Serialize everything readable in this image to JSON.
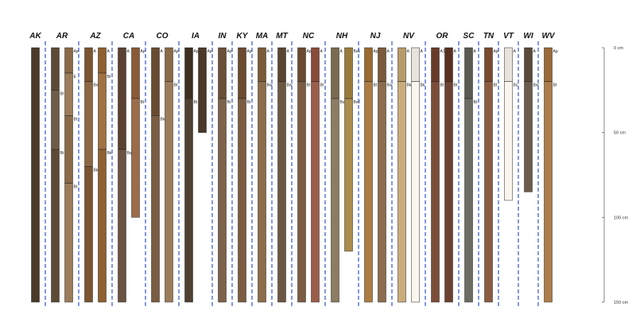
{
  "chart_data": {
    "type": "soil-profile-sketch",
    "depth_axis": {
      "unit": "cm",
      "ticks": [
        {
          "value": 0,
          "label": "0 cm"
        },
        {
          "value": 50,
          "label": "50 cm"
        },
        {
          "value": 100,
          "label": "100 cm"
        },
        {
          "value": 150,
          "label": "150 cm"
        }
      ],
      "range": [
        0,
        150
      ]
    },
    "divider_color": "#3355cc",
    "groups": [
      {
        "name": "AK",
        "profiles": [
          {
            "color": "#4a3a2a",
            "depth": 150,
            "horizons": [
              {
                "top": 0,
                "bottom": 150,
                "label": ""
              }
            ]
          }
        ]
      },
      {
        "name": "AR",
        "profiles": [
          {
            "color": "#5d4a36",
            "depth": 150,
            "horizons": [
              {
                "top": 0,
                "bottom": 25,
                "label": ""
              },
              {
                "top": 25,
                "bottom": 60,
                "label": "Bt"
              },
              {
                "top": 60,
                "bottom": 150,
                "label": "Bt"
              }
            ]
          },
          {
            "color": "#8a6a48",
            "depth": 155,
            "horizons": [
              {
                "top": 0,
                "bottom": 15,
                "label": "Ap"
              },
              {
                "top": 15,
                "bottom": 40,
                "label": "E"
              },
              {
                "top": 40,
                "bottom": 80,
                "label": "Bt"
              },
              {
                "top": 80,
                "bottom": 155,
                "label": "Bt"
              }
            ]
          }
        ]
      },
      {
        "name": "AZ",
        "profiles": [
          {
            "color": "#7a5530",
            "depth": 155,
            "horizons": [
              {
                "top": 0,
                "bottom": 20,
                "label": "A"
              },
              {
                "top": 20,
                "bottom": 70,
                "label": "Bw"
              },
              {
                "top": 70,
                "bottom": 155,
                "label": "Bk"
              }
            ]
          },
          {
            "color": "#8f5f30",
            "depth": 155,
            "horizons": [
              {
                "top": 0,
                "bottom": 15,
                "label": "A"
              },
              {
                "top": 15,
                "bottom": 60,
                "label": "Bt"
              },
              {
                "top": 60,
                "bottom": 155,
                "label": "Bk"
              }
            ]
          }
        ]
      },
      {
        "name": "CA",
        "profiles": [
          {
            "color": "#5a4030",
            "depth": 150,
            "horizons": [
              {
                "top": 0,
                "bottom": 60,
                "label": "A"
              },
              {
                "top": 60,
                "bottom": 150,
                "label": "Bq"
              }
            ]
          },
          {
            "color": "#8a5a38",
            "depth": 100,
            "horizons": [
              {
                "top": 0,
                "bottom": 30,
                "label": "Ap"
              },
              {
                "top": 30,
                "bottom": 100,
                "label": "Bt"
              }
            ]
          }
        ]
      },
      {
        "name": "CO",
        "profiles": [
          {
            "color": "#6a4a30",
            "depth": 150,
            "horizons": [
              {
                "top": 0,
                "bottom": 40,
                "label": "A"
              },
              {
                "top": 40,
                "bottom": 150,
                "label": "Bk"
              }
            ]
          },
          {
            "color": "#8a6a48",
            "depth": 150,
            "horizons": [
              {
                "top": 0,
                "bottom": 20,
                "label": "Ap"
              },
              {
                "top": 20,
                "bottom": 150,
                "label": "Bt"
              }
            ]
          }
        ]
      },
      {
        "name": "IA",
        "profiles": [
          {
            "color": "#3d2e20",
            "depth": 150,
            "horizons": [
              {
                "top": 0,
                "bottom": 30,
                "label": "Ap"
              },
              {
                "top": 30,
                "bottom": 150,
                "label": "Bt"
              }
            ]
          },
          {
            "color": "#4a3828",
            "depth": 50,
            "horizons": [
              {
                "top": 0,
                "bottom": 50,
                "label": "Ap"
              }
            ]
          }
        ]
      },
      {
        "name": "IN",
        "profiles": [
          {
            "color": "#6a5038",
            "depth": 150,
            "horizons": [
              {
                "top": 0,
                "bottom": 30,
                "label": "Ap"
              },
              {
                "top": 30,
                "bottom": 150,
                "label": "Bt"
              }
            ]
          }
        ]
      },
      {
        "name": "KY",
        "profiles": [
          {
            "color": "#6a4a30",
            "depth": 155,
            "horizons": [
              {
                "top": 0,
                "bottom": 30,
                "label": "Ap"
              },
              {
                "top": 30,
                "bottom": 155,
                "label": "Bt"
              }
            ]
          }
        ]
      },
      {
        "name": "MA",
        "profiles": [
          {
            "color": "#7a5a38",
            "depth": 155,
            "horizons": [
              {
                "top": 0,
                "bottom": 20,
                "label": "A"
              },
              {
                "top": 20,
                "bottom": 155,
                "label": "Bw"
              }
            ]
          }
        ]
      },
      {
        "name": "MT",
        "profiles": [
          {
            "color": "#5a4530",
            "depth": 155,
            "horizons": [
              {
                "top": 0,
                "bottom": 20,
                "label": "A"
              },
              {
                "top": 20,
                "bottom": 155,
                "label": "Bw"
              }
            ]
          }
        ]
      },
      {
        "name": "NC",
        "profiles": [
          {
            "color": "#6a4a30",
            "depth": 155,
            "horizons": [
              {
                "top": 0,
                "bottom": 20,
                "label": "Ap"
              },
              {
                "top": 20,
                "bottom": 155,
                "label": "Bt"
              }
            ]
          },
          {
            "color": "#8a4a38",
            "depth": 150,
            "horizons": [
              {
                "top": 0,
                "bottom": 20,
                "label": "A"
              },
              {
                "top": 20,
                "bottom": 150,
                "label": "Bt"
              }
            ]
          }
        ]
      },
      {
        "name": "NH",
        "profiles": [
          {
            "color": "#7a6a50",
            "depth": 155,
            "horizons": [
              {
                "top": 0,
                "bottom": 30,
                "label": "A"
              },
              {
                "top": 30,
                "bottom": 155,
                "label": "Bs"
              }
            ]
          },
          {
            "color": "#9a7a3a",
            "depth": 120,
            "horizons": [
              {
                "top": 0,
                "bottom": 30,
                "label": "Bs1"
              },
              {
                "top": 30,
                "bottom": 120,
                "label": "Bs2"
              }
            ]
          }
        ]
      },
      {
        "name": "NJ",
        "profiles": [
          {
            "color": "#9a6a30",
            "depth": 155,
            "horizons": [
              {
                "top": 0,
                "bottom": 20,
                "label": "Ap"
              },
              {
                "top": 20,
                "bottom": 155,
                "label": "Bt"
              }
            ]
          },
          {
            "color": "#7a5a3a",
            "depth": 150,
            "horizons": [
              {
                "top": 0,
                "bottom": 20,
                "label": "A"
              },
              {
                "top": 20,
                "bottom": 150,
                "label": "Bw"
              }
            ]
          }
        ]
      },
      {
        "name": "NV",
        "profiles": [
          {
            "color": "#b89a6a",
            "depth": 155,
            "horizons": [
              {
                "top": 0,
                "bottom": 20,
                "label": "A"
              },
              {
                "top": 20,
                "bottom": 155,
                "label": "Bk"
              }
            ]
          },
          {
            "color": "#e8e4dc",
            "depth": 150,
            "horizons": [
              {
                "top": 0,
                "bottom": 20,
                "label": "A"
              },
              {
                "top": 20,
                "bottom": 150,
                "label": "Bk"
              }
            ]
          }
        ]
      },
      {
        "name": "OR",
        "profiles": [
          {
            "color": "#6a3a28",
            "depth": 155,
            "horizons": [
              {
                "top": 0,
                "bottom": 20,
                "label": "A1"
              },
              {
                "top": 20,
                "bottom": 155,
                "label": "Bt"
              }
            ]
          },
          {
            "color": "#5a3020",
            "depth": 155,
            "horizons": [
              {
                "top": 0,
                "bottom": 20,
                "label": "A"
              },
              {
                "top": 20,
                "bottom": 155,
                "label": "Bt"
              }
            ]
          }
        ]
      },
      {
        "name": "SC",
        "profiles": [
          {
            "color": "#5a5a50",
            "depth": 155,
            "horizons": [
              {
                "top": 0,
                "bottom": 30,
                "label": "A"
              },
              {
                "top": 30,
                "bottom": 155,
                "label": "Bt"
              }
            ]
          }
        ]
      },
      {
        "name": "TN",
        "profiles": [
          {
            "color": "#7a4a30",
            "depth": 155,
            "horizons": [
              {
                "top": 0,
                "bottom": 20,
                "label": "Ap"
              },
              {
                "top": 20,
                "bottom": 155,
                "label": "Bt"
              }
            ]
          }
        ]
      },
      {
        "name": "VT",
        "profiles": [
          {
            "color": "#e8e4dc",
            "depth": 90,
            "horizons": [
              {
                "top": 0,
                "bottom": 20,
                "label": "A"
              },
              {
                "top": 20,
                "bottom": 90,
                "label": "Bs"
              }
            ]
          }
        ]
      },
      {
        "name": "WI",
        "profiles": [
          {
            "color": "#5a4a3a",
            "depth": 85,
            "horizons": [
              {
                "top": 0,
                "bottom": 20,
                "label": "A"
              },
              {
                "top": 20,
                "bottom": 85,
                "label": "Bw"
              }
            ]
          }
        ]
      },
      {
        "name": "WV",
        "profiles": [
          {
            "color": "#9a6a38",
            "depth": 155,
            "horizons": [
              {
                "top": 0,
                "bottom": 20,
                "label": "Ap"
              },
              {
                "top": 20,
                "bottom": 155,
                "label": "Bt"
              }
            ]
          }
        ]
      }
    ]
  }
}
